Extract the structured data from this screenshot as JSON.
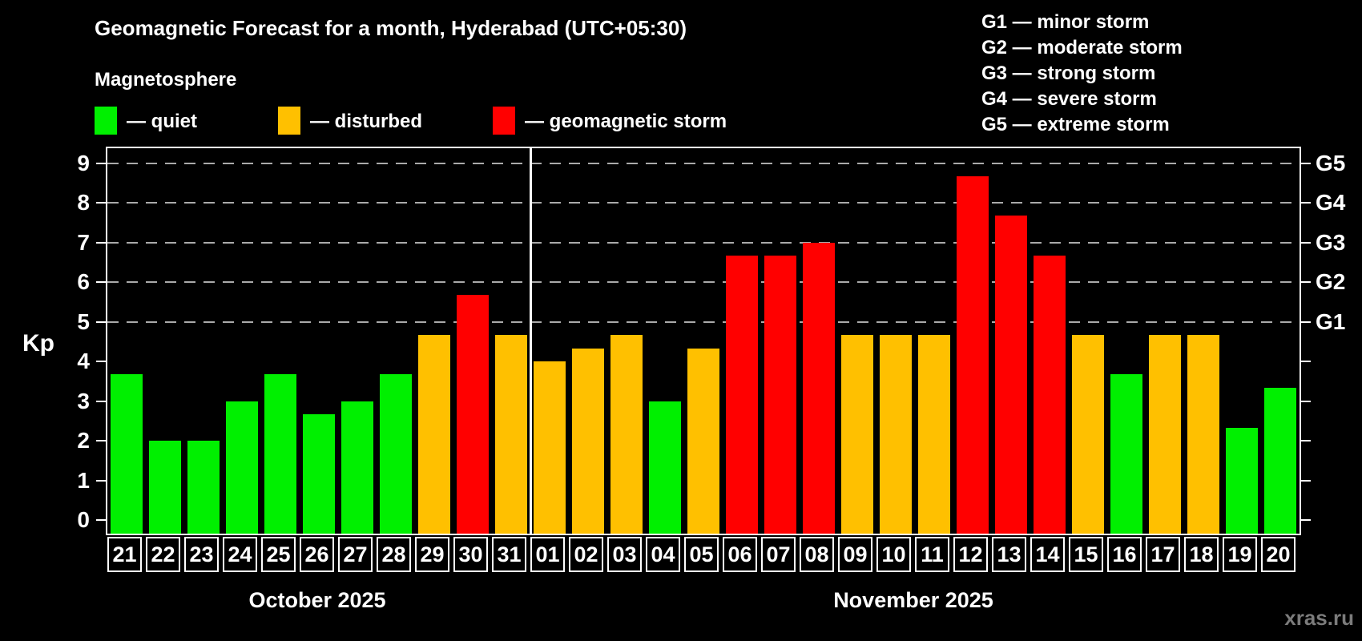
{
  "title": "Geomagnetic Forecast for a month, Hyderabad (UTC+05:30)",
  "subtitle": "Magnetosphere",
  "legend": {
    "quiet": {
      "label": "— quiet",
      "color": "#00f000"
    },
    "disturbed": {
      "label": "— disturbed",
      "color": "#ffc000"
    },
    "storm": {
      "label": "— geomagnetic storm",
      "color": "#ff0000"
    }
  },
  "g_scale_legend": [
    "G1 — minor storm",
    "G2 — moderate storm",
    "G3 — strong storm",
    "G4 — severe storm",
    "G5 — extreme storm"
  ],
  "watermark": "xras.ru",
  "chart_data": {
    "type": "bar",
    "ylabel": "Kp",
    "ylim": [
      0,
      9.5
    ],
    "y_ticks": [
      0,
      1,
      2,
      3,
      4,
      5,
      6,
      7,
      8,
      9
    ],
    "grid_levels": [
      5,
      6,
      7,
      8,
      9
    ],
    "right_axis_labels": [
      {
        "value": 5,
        "label": "G1"
      },
      {
        "value": 6,
        "label": "G2"
      },
      {
        "value": 7,
        "label": "G3"
      },
      {
        "value": 8,
        "label": "G4"
      },
      {
        "value": 9,
        "label": "G5"
      }
    ],
    "status_colors": {
      "quiet": "#00f000",
      "disturbed": "#ffc000",
      "storm": "#ff0000"
    },
    "months": [
      {
        "label": "October 2025",
        "span": 11
      },
      {
        "label": "November 2025",
        "span": 20
      }
    ],
    "bars": [
      {
        "day": "21",
        "kp": 3.67,
        "status": "quiet"
      },
      {
        "day": "22",
        "kp": 2.0,
        "status": "quiet"
      },
      {
        "day": "23",
        "kp": 2.0,
        "status": "quiet"
      },
      {
        "day": "24",
        "kp": 3.0,
        "status": "quiet"
      },
      {
        "day": "25",
        "kp": 3.67,
        "status": "quiet"
      },
      {
        "day": "26",
        "kp": 2.67,
        "status": "quiet"
      },
      {
        "day": "27",
        "kp": 3.0,
        "status": "quiet"
      },
      {
        "day": "28",
        "kp": 3.67,
        "status": "quiet"
      },
      {
        "day": "29",
        "kp": 4.67,
        "status": "disturbed"
      },
      {
        "day": "30",
        "kp": 5.67,
        "status": "storm"
      },
      {
        "day": "31",
        "kp": 4.67,
        "status": "disturbed"
      },
      {
        "day": "01",
        "kp": 4.0,
        "status": "disturbed"
      },
      {
        "day": "02",
        "kp": 4.33,
        "status": "disturbed"
      },
      {
        "day": "03",
        "kp": 4.67,
        "status": "disturbed"
      },
      {
        "day": "04",
        "kp": 3.0,
        "status": "quiet"
      },
      {
        "day": "05",
        "kp": 4.33,
        "status": "disturbed"
      },
      {
        "day": "06",
        "kp": 6.67,
        "status": "storm"
      },
      {
        "day": "07",
        "kp": 6.67,
        "status": "storm"
      },
      {
        "day": "08",
        "kp": 7.0,
        "status": "storm"
      },
      {
        "day": "09",
        "kp": 4.67,
        "status": "disturbed"
      },
      {
        "day": "10",
        "kp": 4.67,
        "status": "disturbed"
      },
      {
        "day": "11",
        "kp": 4.67,
        "status": "disturbed"
      },
      {
        "day": "12",
        "kp": 8.67,
        "status": "storm"
      },
      {
        "day": "13",
        "kp": 7.67,
        "status": "storm"
      },
      {
        "day": "14",
        "kp": 6.67,
        "status": "storm"
      },
      {
        "day": "15",
        "kp": 4.67,
        "status": "disturbed"
      },
      {
        "day": "16",
        "kp": 3.67,
        "status": "quiet"
      },
      {
        "day": "17",
        "kp": 4.67,
        "status": "disturbed"
      },
      {
        "day": "18",
        "kp": 4.67,
        "status": "disturbed"
      },
      {
        "day": "19",
        "kp": 2.33,
        "status": "quiet"
      },
      {
        "day": "20",
        "kp": 3.33,
        "status": "quiet"
      }
    ]
  }
}
